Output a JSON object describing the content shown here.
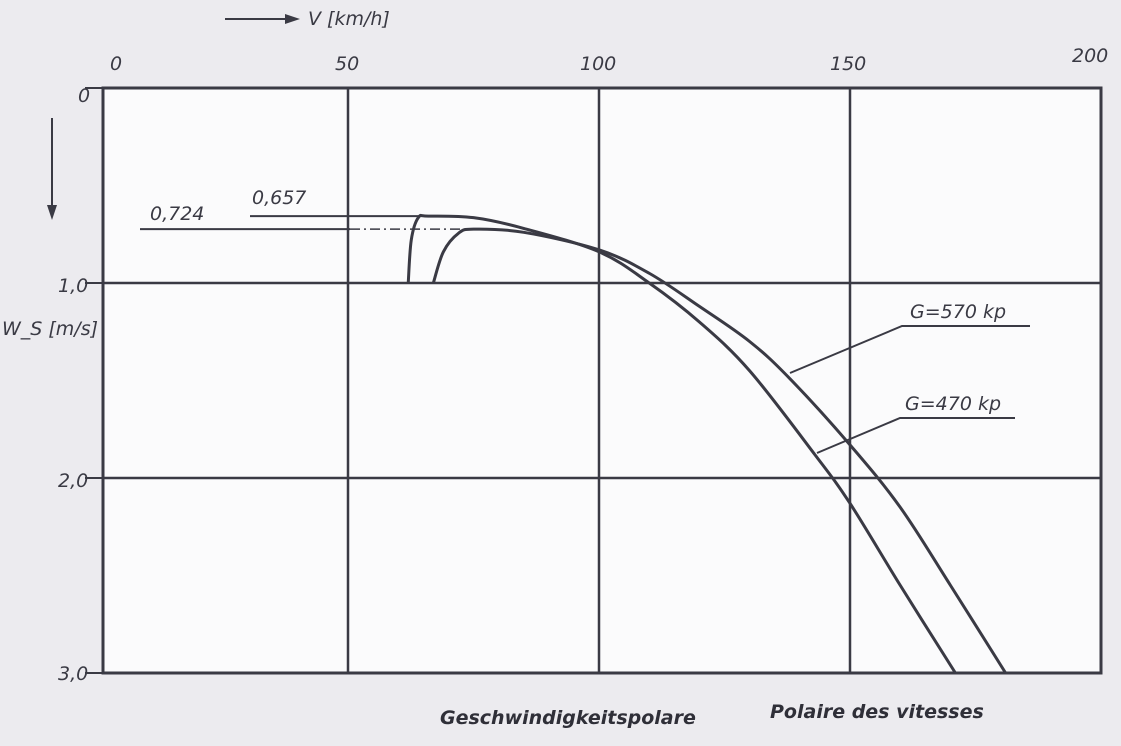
{
  "chart_data": {
    "type": "line",
    "xlabel": "V [km/h]",
    "ylabel": "W_S [m/s]",
    "xlim": [
      0,
      200
    ],
    "ylim": [
      0,
      3.0
    ],
    "y_inverted": true,
    "x_axis_position": "top",
    "x_ticks": [
      "0",
      "50",
      "100",
      "150",
      "200"
    ],
    "y_ticks": [
      "0",
      "1,0",
      "2,0",
      "3,0"
    ],
    "grid": true,
    "series": [
      {
        "name": "G=470 kp",
        "min_sink_label": "0,657",
        "points": [
          [
            62,
            1.0
          ],
          [
            62.6,
            0.78
          ],
          [
            64,
            0.665
          ],
          [
            66,
            0.657
          ],
          [
            75,
            0.665
          ],
          [
            85,
            0.72
          ],
          [
            100,
            0.84
          ],
          [
            110,
            1.0
          ],
          [
            120,
            1.2
          ],
          [
            130,
            1.45
          ],
          [
            143,
            1.88
          ],
          [
            150,
            2.13
          ],
          [
            160,
            2.55
          ],
          [
            171,
            3.0
          ]
        ]
      },
      {
        "name": "G=570 kp",
        "min_sink_label": "0,724",
        "points": [
          [
            67,
            1.0
          ],
          [
            69,
            0.84
          ],
          [
            72,
            0.745
          ],
          [
            75,
            0.724
          ],
          [
            85,
            0.74
          ],
          [
            100,
            0.83
          ],
          [
            110,
            0.95
          ],
          [
            120,
            1.12
          ],
          [
            130,
            1.3
          ],
          [
            138,
            1.49
          ],
          [
            150,
            1.83
          ],
          [
            160,
            2.15
          ],
          [
            170,
            2.55
          ],
          [
            181,
            3.0
          ]
        ]
      }
    ],
    "captions": [
      "Geschwindigkeitspolare",
      "Polaire des vitesses"
    ],
    "colors": {
      "ink": "#3a3a44",
      "paper": "#ecebef"
    }
  }
}
